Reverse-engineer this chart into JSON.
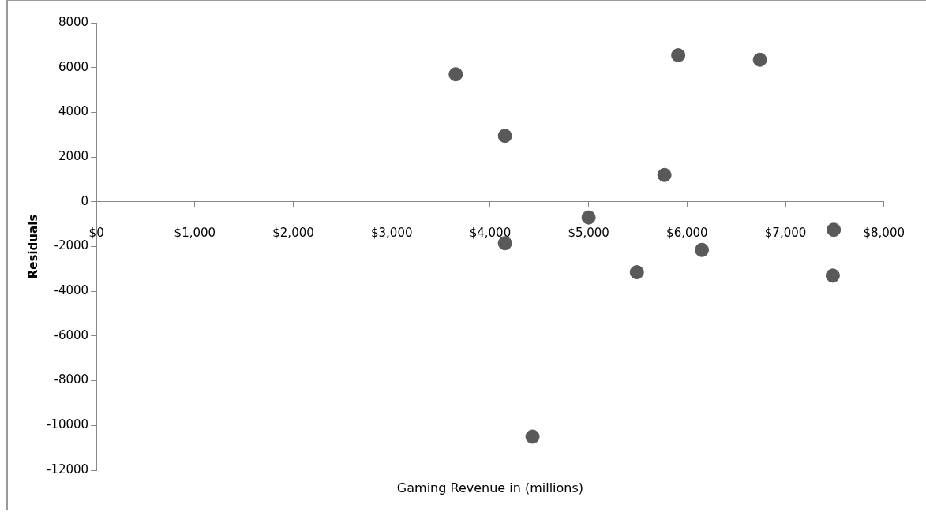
{
  "chart_data": {
    "type": "scatter",
    "xlabel": "Gaming Revenue in (millions)",
    "ylabel": "Residuals",
    "x": [
      3650,
      4150,
      4150,
      4430,
      5000,
      5490,
      5770,
      5910,
      6150,
      6740,
      7490,
      7480
    ],
    "values": [
      5700,
      2950,
      -1850,
      -10500,
      -700,
      -3150,
      1200,
      6550,
      -2150,
      6350,
      -1250,
      -3300
    ],
    "color": "#595959",
    "marker": "circle",
    "grid": false,
    "legend": false,
    "xlim": [
      0,
      8000
    ],
    "xticks": [
      {
        "value": 0,
        "label": "$0"
      },
      {
        "value": 1000,
        "label": "$1,000"
      },
      {
        "value": 2000,
        "label": "$2,000"
      },
      {
        "value": 3000,
        "label": "$3,000"
      },
      {
        "value": 4000,
        "label": "$4,000"
      },
      {
        "value": 5000,
        "label": "$5,000"
      },
      {
        "value": 6000,
        "label": "$6,000"
      },
      {
        "value": 7000,
        "label": "$7,000"
      },
      {
        "value": 8000,
        "label": "$8,000"
      }
    ],
    "ylim": [
      -12000,
      8000
    ],
    "yticks": [
      -12000,
      -10000,
      -8000,
      -6000,
      -4000,
      -2000,
      0,
      2000,
      4000,
      6000,
      8000
    ]
  }
}
